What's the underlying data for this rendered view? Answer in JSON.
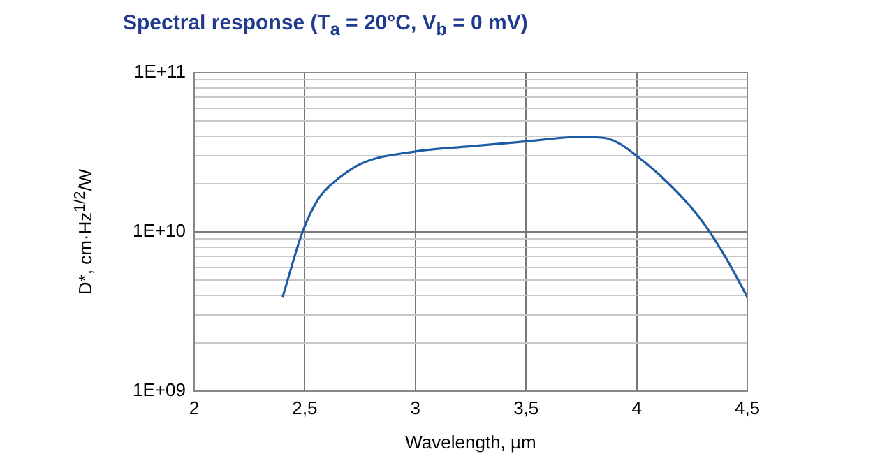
{
  "chart_data": {
    "type": "line",
    "title": "Spectral response (T$_{a}$ = 20°C, V$_{b}$ = 0 mV)",
    "xlabel": "Wavelength, µm",
    "ylabel": "D*, cm·Hz$^{1/2}$/W",
    "x": [
      2.4,
      2.49,
      2.56,
      2.64,
      2.76,
      3.0,
      3.25,
      3.5,
      3.74,
      3.85,
      3.92,
      4.0,
      4.1,
      4.28,
      4.4,
      4.5
    ],
    "series": [
      {
        "color": "#1f5ca6",
        "values": [
          3900000000.0,
          10000000000.0,
          16000000000.0,
          21000000000.0,
          27000000000.0,
          32000000000.0,
          34500000000.0,
          37000000000.0,
          39500000000.0,
          39000000000.0,
          36000000000.0,
          30000000000.0,
          23000000000.0,
          12500000000.0,
          7000000000.0,
          3900000000.0
        ]
      }
    ],
    "log": true,
    "xlim": [
      2,
      4.5
    ],
    "ylim": [
      1000000000.0,
      100000000000.0
    ],
    "xticks": [
      2,
      {
        "value": 2.5,
        "label": "2,5"
      },
      3,
      {
        "value": 3.5,
        "label": "3,5"
      },
      4,
      {
        "value": 4.5,
        "label": "4,5"
      }
    ],
    "yticks": [
      {
        "value": 1000000000.0,
        "label": "1E+09"
      },
      {
        "value": 2000000000.0,
        "label": null
      },
      {
        "value": 3000000000.0,
        "label": null
      },
      {
        "value": 4000000000.0,
        "label": null
      },
      {
        "value": 5000000000.0,
        "label": null
      },
      {
        "value": 6000000000.0,
        "label": null
      },
      {
        "value": 7000000000.0,
        "label": null
      },
      {
        "value": 8000000000.0,
        "label": null
      },
      {
        "value": 9000000000.0,
        "label": null
      },
      {
        "value": 10000000000.0,
        "label": "1E+10"
      },
      {
        "value": 20000000000.0,
        "label": null
      },
      {
        "value": 30000000000.0,
        "label": null
      },
      {
        "value": 40000000000.0,
        "label": null
      },
      {
        "value": 50000000000.0,
        "label": null
      },
      {
        "value": 60000000000.0,
        "label": null
      },
      {
        "value": 70000000000.0,
        "label": null
      },
      {
        "value": 80000000000.0,
        "label": null
      },
      {
        "value": 90000000000.0,
        "label": null
      },
      {
        "value": 100000000000.0,
        "label": "1E+11"
      }
    ],
    "grid": true,
    "marker": "none",
    "line_style": "solid"
  }
}
